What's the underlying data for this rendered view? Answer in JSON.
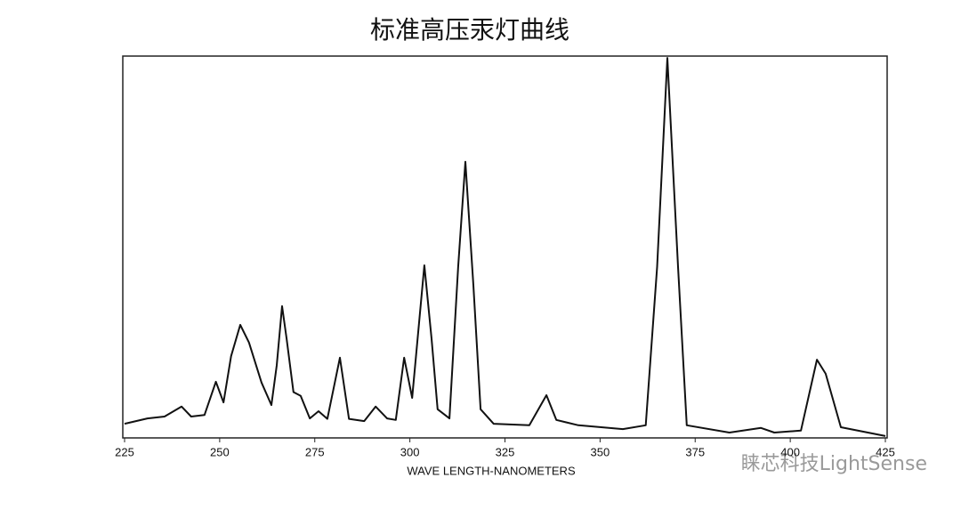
{
  "chart_data": {
    "type": "line",
    "title": "标准高压汞灯曲线",
    "x_label": "WAVE LENGTH-NANOMETERS",
    "watermark": "睐芯科技LightSense",
    "xlim": [
      225,
      425
    ],
    "xticks": [
      225,
      250,
      275,
      300,
      325,
      350,
      375,
      400,
      425
    ],
    "ylim": [
      0,
      100
    ],
    "grid": false,
    "series": [
      {
        "color": "#111111",
        "x": [
          225,
          231,
          235.5,
          240,
          242.5,
          246,
          249,
          251,
          253,
          255.4,
          257.7,
          261,
          263.6,
          265,
          266.4,
          267.6,
          269.4,
          271.3,
          273.7,
          276,
          278.3,
          281.6,
          284,
          288,
          291,
          294,
          296.3,
          298.5,
          300.6,
          303.8,
          305.7,
          307.3,
          310.4,
          312.7,
          314.6,
          316.7,
          318.6,
          322,
          331.4,
          335.9,
          338.5,
          344.3,
          356,
          362,
          365,
          367.7,
          370.5,
          372.8,
          384,
          392.3,
          395.8,
          402.8,
          407,
          409.3,
          413.3,
          425
        ],
        "values": [
          3.7,
          5.1,
          5.6,
          8.2,
          5.6,
          6,
          14.7,
          9.3,
          21.4,
          29.6,
          25,
          14.5,
          8.6,
          19,
          34.5,
          26,
          12,
          11,
          5.1,
          7,
          5,
          21,
          5,
          4.4,
          8.2,
          5.1,
          4.7,
          21,
          10.5,
          45.2,
          26,
          7.5,
          5.1,
          44.8,
          72.3,
          40,
          7.5,
          3.7,
          3.3,
          11.2,
          4.7,
          3.3,
          2.3,
          3.3,
          44.8,
          99.5,
          44.8,
          3.3,
          1.4,
          2.6,
          1.4,
          1.9,
          20.5,
          16.8,
          2.8,
          0.5
        ]
      }
    ]
  }
}
